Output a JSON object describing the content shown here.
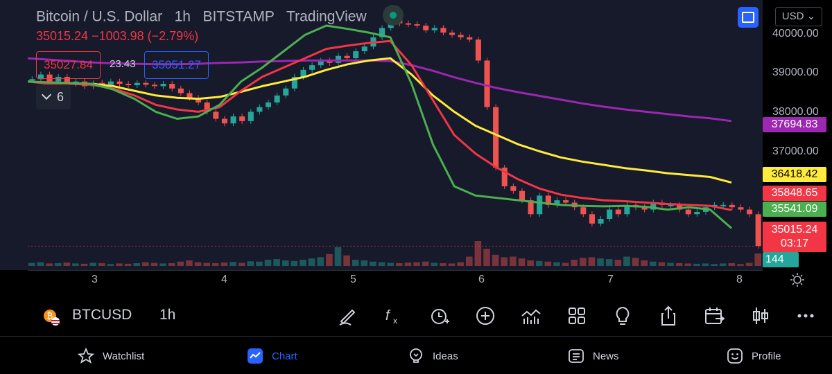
{
  "header": {
    "title": "Bitcoin / U.S. Dollar",
    "interval": "1h",
    "exchange": "BITSTAMP",
    "source": "TradingView",
    "change_line": "35015.24  −1003.98 (−2.79%)",
    "bid": "35027.84",
    "spread": "23.43",
    "ask": "35051.27",
    "indicators_count": "6",
    "currency": "USD"
  },
  "colors": {
    "bg": "#161a2b",
    "up": "#26a69a",
    "down": "#ef5350",
    "ma_green": "#4caf50",
    "ma_red": "#f23645",
    "ma_yellow": "#ffeb3b",
    "ma_purple": "#9c27b0",
    "accent": "#2962ff"
  },
  "chart_data": {
    "type": "line",
    "title": "Bitcoin / U.S. Dollar",
    "ylim": [
      34500,
      40300
    ],
    "y_ticks": [
      "40000.00",
      "39000.00",
      "38000.00",
      "37000.00"
    ],
    "x_ticks": [
      "3",
      "4",
      "5",
      "6",
      "7",
      "8"
    ],
    "grid": false,
    "last_price": 35015.24,
    "series": [
      {
        "key": "green",
        "values": [
          38550,
          38530,
          38520,
          38500,
          38380,
          38180,
          37900,
          37750,
          37800,
          38050,
          38550,
          38850,
          39200,
          39550,
          39750,
          39680,
          39600,
          39500,
          38500,
          37200,
          36300,
          36100,
          36050,
          36000,
          35950,
          35900,
          35880,
          35870,
          35880,
          35860,
          35800,
          35850,
          35800,
          35400
        ]
      },
      {
        "key": "red",
        "values": [
          38550,
          38500,
          38500,
          38480,
          38400,
          38250,
          38050,
          37950,
          37900,
          38000,
          38350,
          38650,
          38850,
          39050,
          39250,
          39320,
          39380,
          39420,
          38900,
          38150,
          37400,
          37000,
          36700,
          36450,
          36250,
          36120,
          36050,
          36000,
          35980,
          35950,
          35920,
          35900,
          35880,
          35790
        ]
      },
      {
        "key": "yellow",
        "values": [
          38550,
          38520,
          38500,
          38500,
          38450,
          38350,
          38250,
          38200,
          38180,
          38220,
          38330,
          38450,
          38550,
          38650,
          38800,
          38920,
          39000,
          39050,
          38700,
          38250,
          37900,
          37600,
          37400,
          37200,
          37050,
          36920,
          36830,
          36760,
          36690,
          36640,
          36580,
          36540,
          36500,
          36380
        ]
      },
      {
        "key": "purple",
        "values": [
          39050,
          39020,
          38990,
          38960,
          38940,
          38930,
          38920,
          38920,
          38930,
          38950,
          38960,
          38980,
          38990,
          39000,
          39000,
          39000,
          39000,
          38990,
          38900,
          38780,
          38640,
          38520,
          38410,
          38320,
          38240,
          38160,
          38080,
          38010,
          37950,
          37900,
          37850,
          37800,
          37760,
          37700
        ]
      }
    ],
    "price_labels": {
      "purple": "37694.83",
      "yellow": "36418.42",
      "red": "35848.65",
      "green": "35541.09",
      "last": "35015.24",
      "countdown": "03:17",
      "volume": "144"
    },
    "candles": [
      38600,
      38700,
      38550,
      38650,
      38500,
      38550,
      38450,
      38520,
      38480,
      38550,
      38500,
      38470,
      38520,
      38480,
      38450,
      38500,
      38400,
      38300,
      38200,
      38100,
      37900,
      37750,
      37650,
      37800,
      37700,
      37900,
      38000,
      38100,
      38250,
      38400,
      38650,
      38800,
      38900,
      39000,
      38950,
      39100,
      39050,
      39200,
      39300,
      39500,
      39700,
      39900,
      39800,
      39780,
      39750,
      39650,
      39700,
      39600,
      39550,
      39500,
      39450,
      39000,
      38000,
      36700,
      36300,
      36200,
      36000,
      35700,
      36100,
      35900,
      36000,
      35950,
      35850,
      35700,
      35500,
      35600,
      35800,
      35700,
      35900,
      35850,
      35800,
      35950,
      35900,
      35900,
      35800,
      35700,
      35750,
      35850,
      35900,
      35900,
      35850,
      35800,
      35700,
      35020
    ],
    "volumes": [
      10,
      12,
      8,
      9,
      11,
      8,
      7,
      10,
      9,
      6,
      8,
      7,
      9,
      12,
      10,
      8,
      9,
      14,
      18,
      12,
      10,
      9,
      11,
      13,
      10,
      15,
      14,
      20,
      22,
      18,
      16,
      20,
      24,
      28,
      38,
      60,
      34,
      20,
      18,
      14,
      12,
      10,
      9,
      11,
      12,
      14,
      10,
      9,
      8,
      12,
      30,
      80,
      55,
      36,
      28,
      30,
      24,
      18,
      16,
      14,
      12,
      10,
      20,
      26,
      28,
      24,
      22,
      20,
      30,
      26,
      18,
      14,
      12,
      10,
      9,
      8,
      7,
      8,
      6,
      8,
      9,
      6,
      10,
      40
    ]
  },
  "toolbar": {
    "symbol": "BTCUSD",
    "interval": "1h"
  },
  "nav": {
    "watchlist": "Watchlist",
    "chart": "Chart",
    "ideas": "Ideas",
    "news": "News",
    "profile": "Profile"
  }
}
